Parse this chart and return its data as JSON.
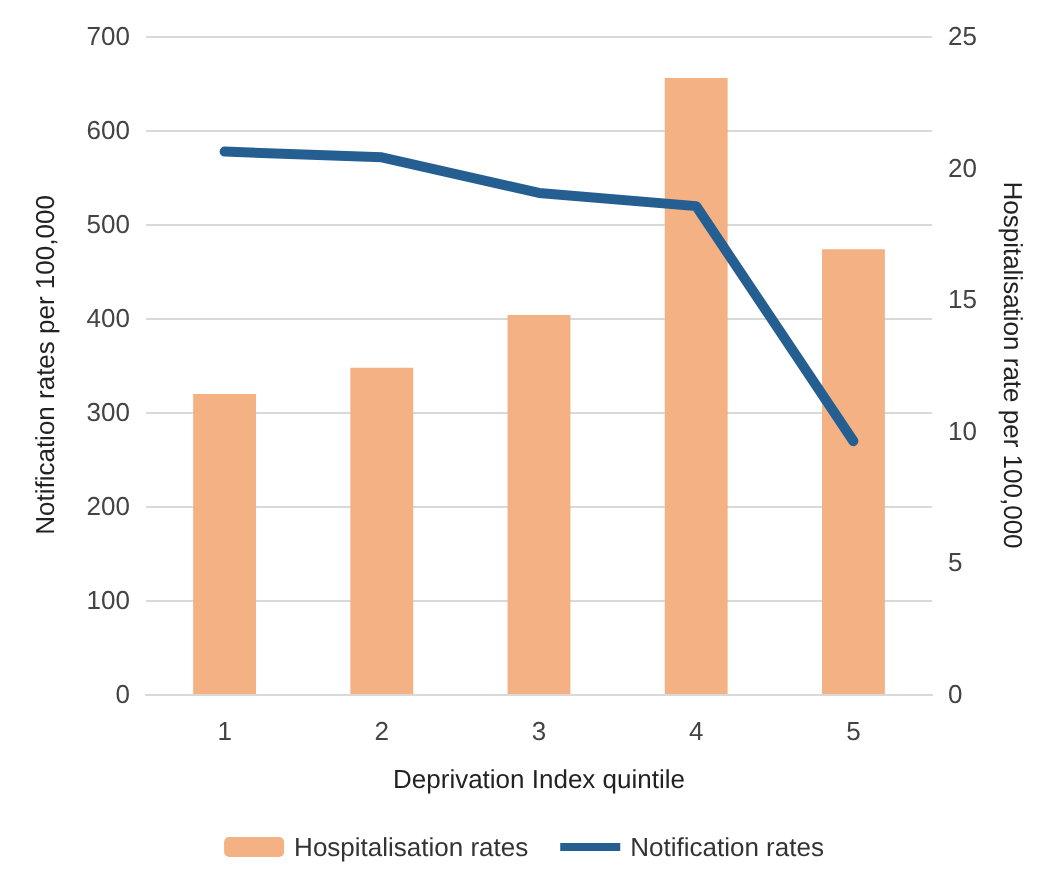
{
  "chart_data": {
    "type": "bar",
    "xlabel": "Deprivation Index quintile",
    "ylabel": "Notification rates per 100,000",
    "y2label": "Hospitalisation rate per 100,000",
    "categories": [
      "1",
      "2",
      "3",
      "4",
      "5"
    ],
    "series": [
      {
        "name": "Hospitalisation rates",
        "axis": "y2",
        "color": "#f4b183",
        "values": [
          11.4,
          12.4,
          14.4,
          23.4,
          16.9
        ]
      },
      {
        "name": "Notification rates",
        "type": "line",
        "axis": "y",
        "color": "#255e91",
        "values": [
          577,
          571,
          533,
          519,
          269
        ]
      }
    ],
    "ylim": [
      0,
      700
    ],
    "yticks": [
      0,
      100,
      200,
      300,
      400,
      500,
      600,
      700
    ],
    "y2lim": [
      0,
      25
    ],
    "y2ticks": [
      0,
      5,
      10,
      15,
      20,
      25
    ],
    "grid": "y",
    "legend": "bottom",
    "marker": "none"
  }
}
